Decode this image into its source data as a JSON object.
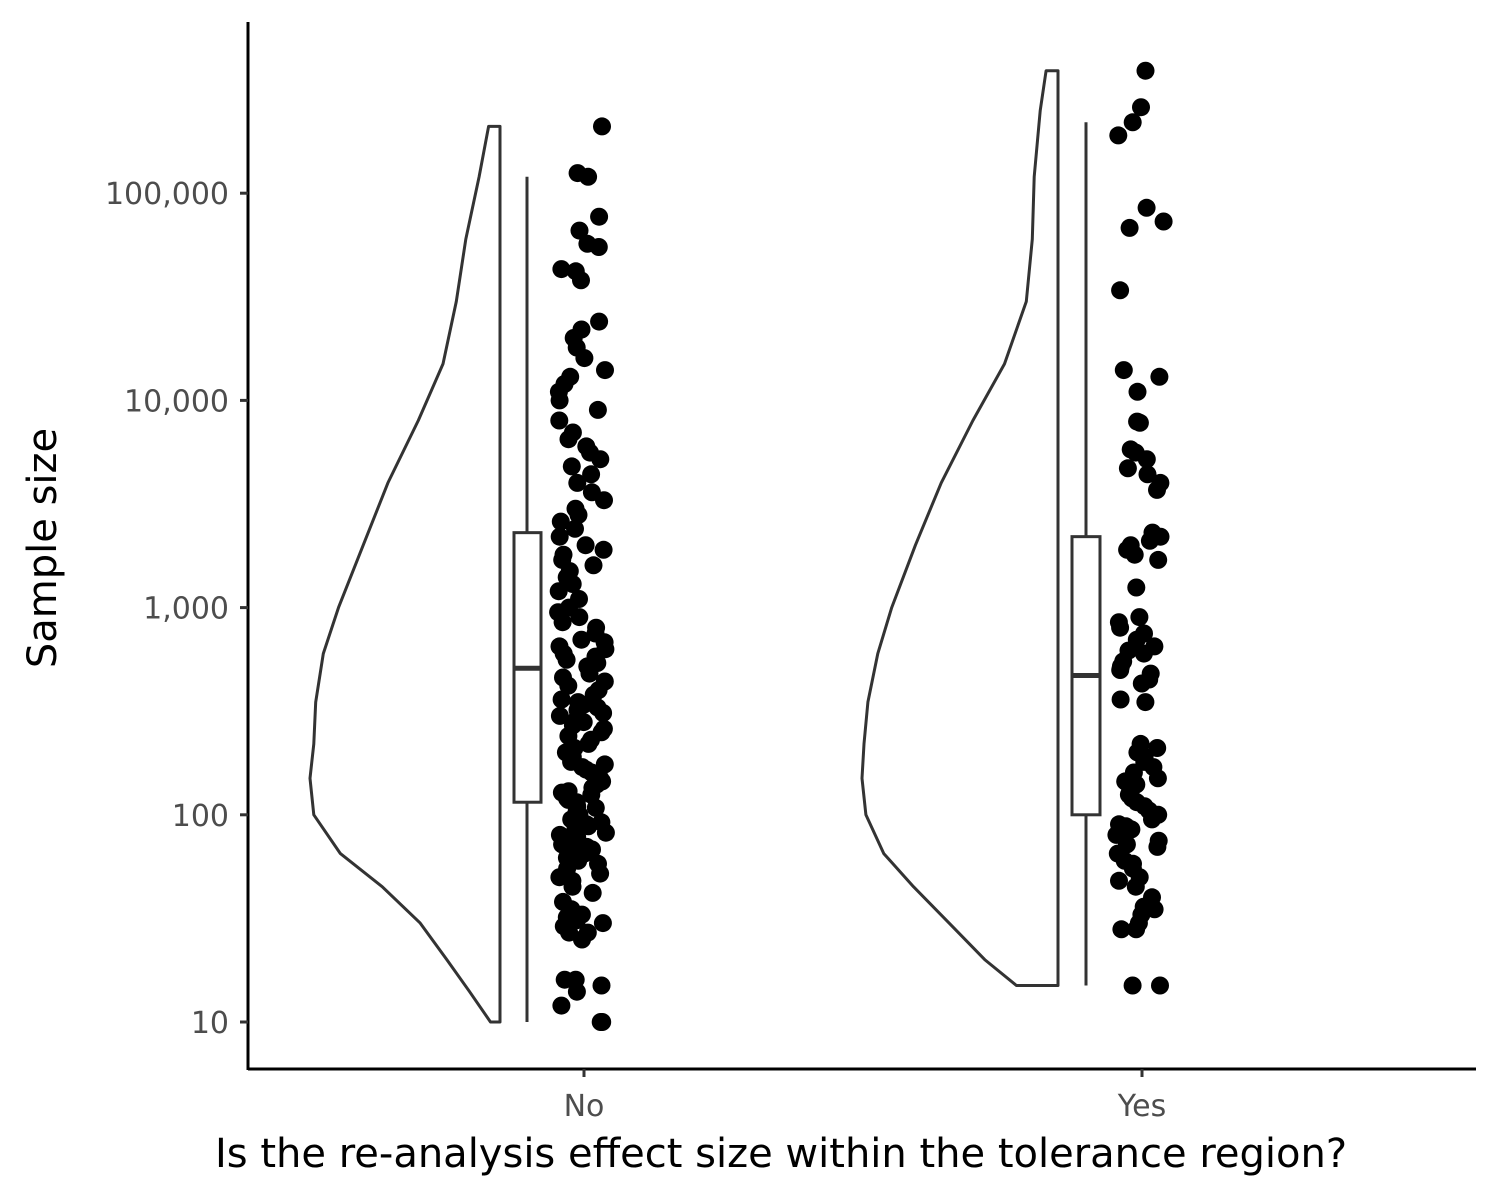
{
  "chart_data": {
    "type": "raincloud",
    "xlabel": "Is the re-analysis effect size within the tolerance region?",
    "ylabel": "Sample size",
    "y_scale": "log10",
    "ylim": [
      6,
      620000
    ],
    "y_ticks": [
      {
        "value": 10,
        "label": "10"
      },
      {
        "value": 100,
        "label": "100"
      },
      {
        "value": 1000,
        "label": "1,000"
      },
      {
        "value": 10000,
        "label": "10,000"
      },
      {
        "value": 100000,
        "label": "100,000"
      }
    ],
    "grid": false,
    "categories": [
      "No",
      "Yes"
    ],
    "groups": [
      {
        "category": "No",
        "violin_half": "left",
        "min": 10,
        "max": 210000,
        "density": [
          [
            10,
            0.05
          ],
          [
            14,
            0.16
          ],
          [
            20,
            0.28
          ],
          [
            30,
            0.42
          ],
          [
            45,
            0.62
          ],
          [
            65,
            0.84
          ],
          [
            100,
            0.98
          ],
          [
            150,
            1.0
          ],
          [
            220,
            0.98
          ],
          [
            350,
            0.97
          ],
          [
            600,
            0.93
          ],
          [
            1000,
            0.85
          ],
          [
            2000,
            0.72
          ],
          [
            4000,
            0.59
          ],
          [
            8000,
            0.43
          ],
          [
            15000,
            0.3
          ],
          [
            30000,
            0.23
          ],
          [
            60000,
            0.18
          ],
          [
            120000,
            0.11
          ],
          [
            210000,
            0.06
          ]
        ],
        "box": {
          "lower_whisker": 10,
          "q1": 115,
          "median": 510,
          "q3": 2300,
          "upper_whisker": 120000
        },
        "points": [
          10,
          10,
          12,
          14,
          15,
          16,
          16,
          25,
          27,
          27,
          29,
          30,
          31,
          32,
          33,
          35,
          38,
          42,
          45,
          48,
          50,
          52,
          55,
          58,
          60,
          62,
          65,
          66,
          68,
          70,
          72,
          75,
          78,
          80,
          82,
          85,
          88,
          90,
          92,
          95,
          98,
          100,
          105,
          108,
          110,
          115,
          118,
          120,
          125,
          128,
          130,
          135,
          140,
          145,
          150,
          155,
          160,
          165,
          170,
          175,
          180,
          190,
          200,
          210,
          220,
          230,
          240,
          250,
          260,
          270,
          280,
          290,
          300,
          310,
          320,
          330,
          340,
          350,
          360,
          380,
          400,
          420,
          440,
          460,
          480,
          500,
          520,
          540,
          560,
          580,
          600,
          630,
          650,
          680,
          700,
          750,
          800,
          850,
          900,
          950,
          1000,
          1100,
          1200,
          1300,
          1400,
          1500,
          1600,
          1700,
          1800,
          1900,
          2000,
          2200,
          2400,
          2600,
          2800,
          3000,
          3300,
          3600,
          4000,
          4400,
          4800,
          5200,
          5600,
          6000,
          6500,
          7000,
          8000,
          9000,
          10000,
          11000,
          12000,
          13000,
          14000,
          16000,
          18000,
          20000,
          22000,
          24000,
          38000,
          42000,
          43000,
          55000,
          57000,
          66000,
          77000,
          120000,
          125000,
          210000
        ]
      },
      {
        "category": "Yes",
        "violin_half": "left",
        "min": 15,
        "max": 390000,
        "density": [
          [
            15,
            0.0
          ],
          [
            15,
            0.21
          ],
          [
            20,
            0.37
          ],
          [
            30,
            0.55
          ],
          [
            45,
            0.73
          ],
          [
            65,
            0.88
          ],
          [
            100,
            0.97
          ],
          [
            150,
            0.99
          ],
          [
            220,
            0.98
          ],
          [
            350,
            0.96
          ],
          [
            600,
            0.91
          ],
          [
            1000,
            0.84
          ],
          [
            2000,
            0.72
          ],
          [
            4000,
            0.59
          ],
          [
            8000,
            0.43
          ],
          [
            15000,
            0.27
          ],
          [
            30000,
            0.16
          ],
          [
            60000,
            0.13
          ],
          [
            120000,
            0.12
          ],
          [
            250000,
            0.09
          ],
          [
            390000,
            0.06
          ]
        ],
        "box": {
          "lower_whisker": 15,
          "q1": 100,
          "median": 470,
          "q3": 2200,
          "upper_whisker": 220000
        },
        "points": [
          15,
          15,
          28,
          28,
          30,
          33,
          35,
          36,
          40,
          45,
          48,
          50,
          55,
          58,
          60,
          65,
          70,
          72,
          75,
          80,
          82,
          85,
          88,
          90,
          95,
          100,
          105,
          110,
          115,
          120,
          125,
          130,
          140,
          145,
          150,
          160,
          170,
          180,
          190,
          200,
          210,
          220,
          350,
          360,
          430,
          450,
          480,
          500,
          520,
          550,
          600,
          620,
          650,
          700,
          750,
          800,
          850,
          900,
          1250,
          1700,
          1800,
          1900,
          2000,
          2100,
          2200,
          2300,
          3700,
          4000,
          4400,
          4700,
          5200,
          5600,
          5800,
          7800,
          7900,
          11000,
          13000,
          14000,
          34000,
          68000,
          73000,
          85000,
          190000,
          220000,
          260000,
          390000
        ]
      }
    ]
  }
}
